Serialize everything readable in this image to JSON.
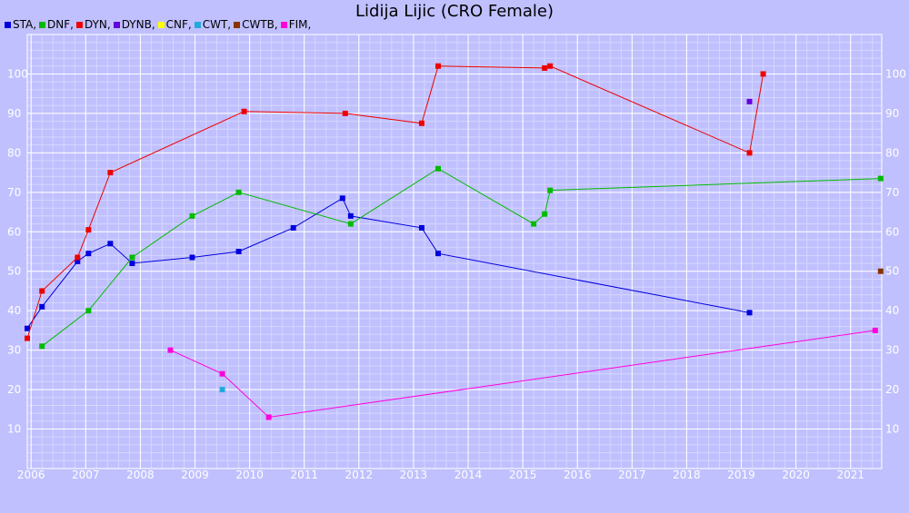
{
  "chart_data": {
    "type": "line",
    "title": "Lidija Lijic (CRO Female)",
    "xlabel": "",
    "ylabel": "",
    "xlim": [
      2005.93,
      2021.57
    ],
    "ylim": [
      0,
      110
    ],
    "x_ticks": [
      "2006",
      "2007",
      "2008",
      "2009",
      "2010",
      "2011",
      "2012",
      "2013",
      "2014",
      "2015",
      "2016",
      "2017",
      "2018",
      "2019",
      "2020",
      "2021"
    ],
    "y_ticks": [
      10,
      20,
      30,
      40,
      50,
      60,
      70,
      80,
      90,
      100
    ],
    "grid": true,
    "legend_position": "top-left",
    "series": [
      {
        "name": "STA",
        "color": "#0000dd",
        "points": [
          [
            2005.93,
            35.5
          ],
          [
            2006.2,
            41
          ],
          [
            2006.85,
            52.5
          ],
          [
            2007.05,
            54.5
          ],
          [
            2007.45,
            57
          ],
          [
            2007.85,
            52
          ],
          [
            2008.95,
            53.5
          ],
          [
            2009.8,
            55
          ],
          [
            2010.8,
            61
          ],
          [
            2011.7,
            68.5
          ],
          [
            2011.85,
            64
          ],
          [
            2013.15,
            61
          ],
          [
            2013.45,
            54.5
          ],
          [
            2019.15,
            39.5
          ]
        ]
      },
      {
        "name": "DNF",
        "color": "#00bb00",
        "points": [
          [
            2006.2,
            31
          ],
          [
            2007.05,
            40
          ],
          [
            2007.85,
            53.5
          ],
          [
            2008.95,
            64
          ],
          [
            2009.8,
            70
          ],
          [
            2011.85,
            62
          ],
          [
            2013.45,
            76
          ],
          [
            2015.2,
            62
          ],
          [
            2015.4,
            64.5
          ],
          [
            2015.5,
            70.5
          ],
          [
            2021.55,
            73.5
          ]
        ]
      },
      {
        "name": "DYN",
        "color": "#ee0000",
        "points": [
          [
            2005.93,
            33
          ],
          [
            2006.2,
            45
          ],
          [
            2006.85,
            53.5
          ],
          [
            2007.05,
            60.5
          ],
          [
            2007.45,
            75
          ],
          [
            2009.9,
            90.5
          ],
          [
            2011.75,
            90
          ],
          [
            2013.15,
            87.5
          ],
          [
            2013.45,
            102
          ],
          [
            2015.4,
            101.5
          ],
          [
            2015.5,
            102
          ],
          [
            2019.15,
            80
          ],
          [
            2019.4,
            100
          ]
        ]
      },
      {
        "name": "DYNB",
        "color": "#6600dd",
        "points": [
          [
            2019.15,
            93
          ]
        ]
      },
      {
        "name": "CNF",
        "color": "#ffff00",
        "points": []
      },
      {
        "name": "CWT",
        "color": "#22aadd",
        "points": [
          [
            2009.5,
            20
          ]
        ]
      },
      {
        "name": "CWTB",
        "color": "#883300",
        "points": [
          [
            2021.55,
            50
          ]
        ]
      },
      {
        "name": "FIM",
        "color": "#ff00dd",
        "points": [
          [
            2008.55,
            30
          ],
          [
            2009.5,
            24
          ],
          [
            2010.35,
            13
          ],
          [
            2021.45,
            35
          ]
        ]
      }
    ]
  }
}
